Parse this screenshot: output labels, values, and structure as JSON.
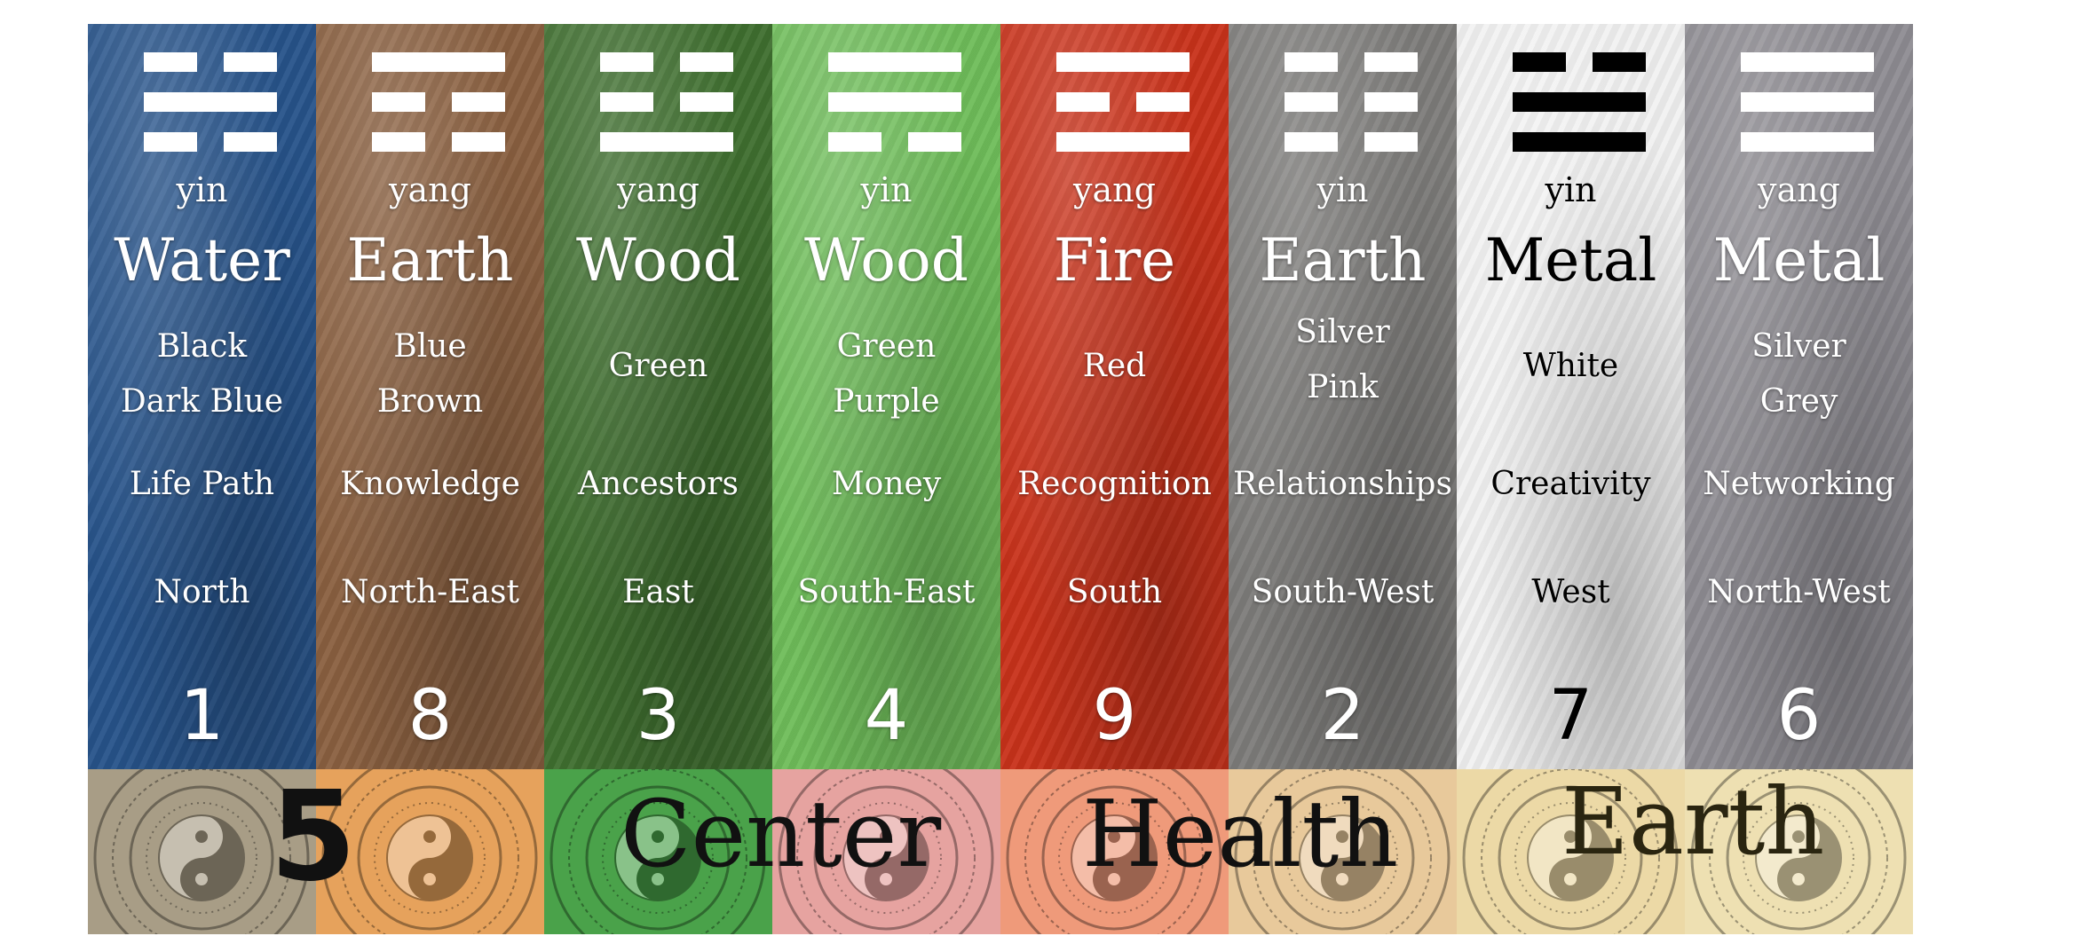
{
  "columns": [
    {
      "id": "water",
      "yinyang": "yin",
      "element": "Water",
      "colors": [
        "Black",
        "Dark Blue"
      ],
      "aspiration": "Life Path",
      "direction": "North",
      "number": "1",
      "trigram": [
        "broken",
        "solid",
        "broken"
      ],
      "trigram_color": "#ffffff",
      "text_color": "#ffffff",
      "bg": "#27538a",
      "icon": "water-wave-texture"
    },
    {
      "id": "earth-yang",
      "yinyang": "yang",
      "element": "Earth",
      "colors": [
        "Blue",
        "Brown"
      ],
      "aspiration": "Knowledge",
      "direction": "North-East",
      "number": "8",
      "trigram": [
        "solid",
        "broken",
        "broken"
      ],
      "trigram_color": "#ffffff",
      "text_color": "#ffffff",
      "bg": "#8a6040",
      "icon": "stacked-stones-texture"
    },
    {
      "id": "wood-yang",
      "yinyang": "yang",
      "element": "Wood",
      "colors": [
        "Green"
      ],
      "aspiration": "Ancestors",
      "direction": "East",
      "number": "3",
      "trigram": [
        "broken",
        "broken",
        "solid"
      ],
      "trigram_color": "#ffffff",
      "text_color": "#ffffff",
      "bg": "#3f6f2f",
      "icon": "forest-tree-texture"
    },
    {
      "id": "wood-yin",
      "yinyang": "yin",
      "element": "Wood",
      "colors": [
        "Green",
        "Purple"
      ],
      "aspiration": "Money",
      "direction": "South-East",
      "number": "4",
      "trigram": [
        "solid",
        "solid",
        "broken"
      ],
      "trigram_color": "#ffffff",
      "text_color": "#ffffff",
      "bg": "#6fbd5a",
      "icon": "green-leaves-texture"
    },
    {
      "id": "fire",
      "yinyang": "yang",
      "element": "Fire",
      "colors": [
        "Red"
      ],
      "aspiration": "Recognition",
      "direction": "South",
      "number": "9",
      "trigram": [
        "solid",
        "broken",
        "solid"
      ],
      "trigram_color": "#ffffff",
      "text_color": "#ffffff",
      "bg": "#c8321a",
      "icon": "flames-texture"
    },
    {
      "id": "earth-yin",
      "yinyang": "yin",
      "element": "Earth",
      "colors": [
        "Silver",
        "Pink"
      ],
      "aspiration": "Relationships",
      "direction": "South-West",
      "number": "2",
      "trigram": [
        "broken",
        "broken",
        "broken"
      ],
      "trigram_color": "#ffffff",
      "text_color": "#ffffff",
      "bg": "#7d7c7a",
      "icon": "mountain-texture"
    },
    {
      "id": "metal-yin",
      "yinyang": "yin",
      "element": "Metal",
      "colors": [
        "White"
      ],
      "aspiration": "Creativity",
      "direction": "West",
      "number": "7",
      "trigram": [
        "broken",
        "solid",
        "solid"
      ],
      "trigram_color": "#000000",
      "text_color": "#000000",
      "bg": "#f1f1f1",
      "icon": "white-feather-texture"
    },
    {
      "id": "metal-yang",
      "yinyang": "yang",
      "element": "Metal",
      "colors": [
        "Silver",
        "Grey"
      ],
      "aspiration": "Networking",
      "direction": "North-West",
      "number": "6",
      "trigram": [
        "solid",
        "solid",
        "solid"
      ],
      "trigram_color": "#ffffff",
      "text_color": "#ffffff",
      "bg": "#8e8c92",
      "icon": "metal-surface-texture"
    }
  ],
  "center_band": {
    "number": "5",
    "words": [
      "Center",
      "Health",
      "Earth"
    ],
    "tile_tints": [
      "#a89d86",
      "#e6a25c",
      "#4aa24a",
      "#e6a3a0",
      "#ef9a7a",
      "#e8c99b",
      "#ecd9a6",
      "#eee0b2"
    ],
    "icon": "yin-yang-medallion-icon"
  }
}
